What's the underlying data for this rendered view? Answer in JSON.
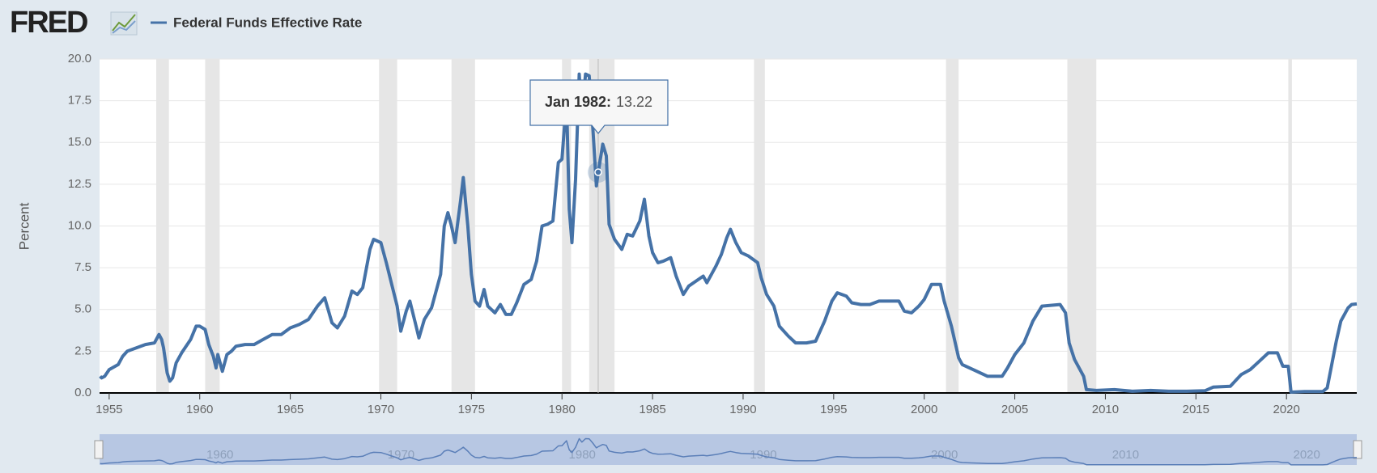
{
  "chart_data": {
    "type": "line",
    "logo": "FRED",
    "y_label": "Percent",
    "x": [
      1954.5,
      1954.58,
      1954.75,
      1955.0,
      1955.5,
      1955.75,
      1956.0,
      1956.5,
      1957.0,
      1957.5,
      1957.75,
      1957.9,
      1958.0,
      1958.2,
      1958.35,
      1958.5,
      1958.7,
      1959.0,
      1959.5,
      1959.8,
      1960.0,
      1960.3,
      1960.5,
      1960.75,
      1960.9,
      1961.0,
      1961.25,
      1961.5,
      1961.75,
      1962.0,
      1962.5,
      1963.0,
      1963.5,
      1964.0,
      1964.5,
      1965.0,
      1965.5,
      1966.0,
      1966.5,
      1966.9,
      1967.3,
      1967.6,
      1968.0,
      1968.4,
      1968.7,
      1969.0,
      1969.4,
      1969.6,
      1970.0,
      1970.3,
      1970.6,
      1970.9,
      1971.1,
      1971.4,
      1971.6,
      1971.9,
      1972.1,
      1972.4,
      1972.8,
      1973.0,
      1973.3,
      1973.5,
      1973.7,
      1973.9,
      1974.1,
      1974.4,
      1974.55,
      1974.8,
      1975.0,
      1975.2,
      1975.45,
      1975.7,
      1975.9,
      1976.3,
      1976.6,
      1976.9,
      1977.2,
      1977.5,
      1977.9,
      1978.3,
      1978.6,
      1978.9,
      1979.2,
      1979.5,
      1979.8,
      1980.0,
      1980.25,
      1980.4,
      1980.55,
      1980.75,
      1980.95,
      1981.1,
      1981.3,
      1981.5,
      1981.7,
      1981.9,
      1982.0,
      1982.25,
      1982.45,
      1982.6,
      1982.9,
      1983.3,
      1983.6,
      1983.9,
      1984.3,
      1984.55,
      1984.8,
      1985.0,
      1985.3,
      1985.6,
      1986.0,
      1986.3,
      1986.7,
      1987.0,
      1987.4,
      1987.8,
      1988.0,
      1988.5,
      1988.8,
      1989.1,
      1989.3,
      1989.6,
      1989.9,
      1990.3,
      1990.8,
      1991.0,
      1991.3,
      1991.7,
      1992.0,
      1992.5,
      1992.9,
      1993.5,
      1994.0,
      1994.5,
      1994.9,
      1995.2,
      1995.7,
      1996.0,
      1996.5,
      1997.0,
      1997.5,
      1998.0,
      1998.6,
      1998.9,
      1999.3,
      1999.7,
      2000.0,
      2000.4,
      2000.9,
      2001.1,
      2001.5,
      2001.9,
      2002.1,
      2002.9,
      2003.5,
      2004.3,
      2004.6,
      2005.0,
      2005.5,
      2006.0,
      2006.5,
      2007.5,
      2007.8,
      2008.0,
      2008.3,
      2008.8,
      2008.95,
      2009.5,
      2010.5,
      2011.5,
      2012.5,
      2013.5,
      2014.5,
      2015.5,
      2015.95,
      2016.9,
      2017.5,
      2018.0,
      2018.5,
      2019.0,
      2019.5,
      2019.8,
      2020.1,
      2020.25,
      2021.0,
      2022.0,
      2022.25,
      2022.5,
      2022.75,
      2023.0,
      2023.4,
      2023.6,
      2023.88
    ],
    "series": [
      {
        "name": "Federal Funds Effective Rate",
        "color": "#4572a7",
        "values": [
          1.0,
          0.9,
          1.0,
          1.4,
          1.7,
          2.2,
          2.5,
          2.7,
          2.9,
          3.0,
          3.5,
          3.2,
          2.7,
          1.2,
          0.7,
          0.9,
          1.8,
          2.4,
          3.2,
          4.0,
          4.0,
          3.8,
          2.9,
          2.2,
          1.5,
          2.3,
          1.3,
          2.3,
          2.5,
          2.8,
          2.9,
          2.9,
          3.2,
          3.5,
          3.5,
          3.9,
          4.1,
          4.4,
          5.2,
          5.7,
          4.2,
          3.9,
          4.6,
          6.1,
          5.9,
          6.3,
          8.6,
          9.2,
          9.0,
          7.8,
          6.5,
          5.2,
          3.7,
          4.9,
          5.5,
          4.2,
          3.3,
          4.4,
          5.1,
          5.9,
          7.1,
          10.0,
          10.8,
          10.0,
          9.0,
          11.5,
          12.9,
          10.0,
          7.1,
          5.5,
          5.2,
          6.2,
          5.2,
          4.8,
          5.3,
          4.7,
          4.7,
          5.4,
          6.5,
          6.8,
          7.9,
          10.0,
          10.1,
          10.3,
          13.8,
          14.0,
          17.6,
          11.0,
          9.0,
          12.8,
          19.1,
          16.6,
          19.1,
          19.0,
          15.9,
          12.4,
          13.22,
          14.9,
          14.2,
          10.1,
          9.2,
          8.6,
          9.5,
          9.4,
          10.3,
          11.6,
          9.4,
          8.4,
          7.8,
          7.9,
          8.1,
          7.0,
          5.9,
          6.4,
          6.7,
          7.0,
          6.6,
          7.6,
          8.3,
          9.3,
          9.8,
          9.0,
          8.4,
          8.2,
          7.8,
          6.9,
          5.9,
          5.2,
          4.0,
          3.4,
          3.0,
          3.0,
          3.1,
          4.3,
          5.5,
          6.0,
          5.8,
          5.4,
          5.3,
          5.3,
          5.5,
          5.5,
          5.5,
          4.9,
          4.8,
          5.2,
          5.6,
          6.5,
          6.5,
          5.5,
          4.0,
          2.1,
          1.7,
          1.3,
          1.0,
          1.0,
          1.5,
          2.3,
          3.0,
          4.3,
          5.2,
          5.3,
          4.8,
          3.0,
          2.0,
          1.0,
          0.2,
          0.15,
          0.2,
          0.1,
          0.15,
          0.1,
          0.1,
          0.13,
          0.35,
          0.4,
          1.1,
          1.4,
          1.9,
          2.4,
          2.4,
          1.6,
          1.6,
          0.05,
          0.08,
          0.08,
          0.3,
          1.7,
          3.1,
          4.3,
          5.1,
          5.3,
          5.33
        ]
      }
    ],
    "recessions": [
      [
        1957.6,
        1958.3
      ],
      [
        1960.3,
        1961.1
      ],
      [
        1969.9,
        1970.9
      ],
      [
        1973.9,
        1975.2
      ],
      [
        1980.0,
        1980.5
      ],
      [
        1981.5,
        1982.9
      ],
      [
        1990.6,
        1991.2
      ],
      [
        2001.2,
        2001.9
      ],
      [
        2007.9,
        2009.5
      ],
      [
        2020.1,
        2020.3
      ]
    ],
    "tooltip": {
      "x": 1982.0,
      "label": "Jan 1982:",
      "value": 13.22
    },
    "xlim": [
      1954.47,
      2023.88
    ],
    "xticks": [
      1955,
      1960,
      1965,
      1970,
      1975,
      1980,
      1985,
      1990,
      1995,
      2000,
      2005,
      2010,
      2015,
      2020
    ],
    "ylim": [
      0,
      20
    ],
    "yticks": [
      {
        "value": 0,
        "label": "0.0"
      },
      2.5,
      {
        "value": 5,
        "label": "5.0"
      },
      7.5,
      {
        "value": 10,
        "label": "10.0"
      },
      12.5,
      {
        "value": 15,
        "label": "15.0"
      },
      17.5,
      {
        "value": 20,
        "label": "20.0"
      }
    ],
    "grid": true
  }
}
